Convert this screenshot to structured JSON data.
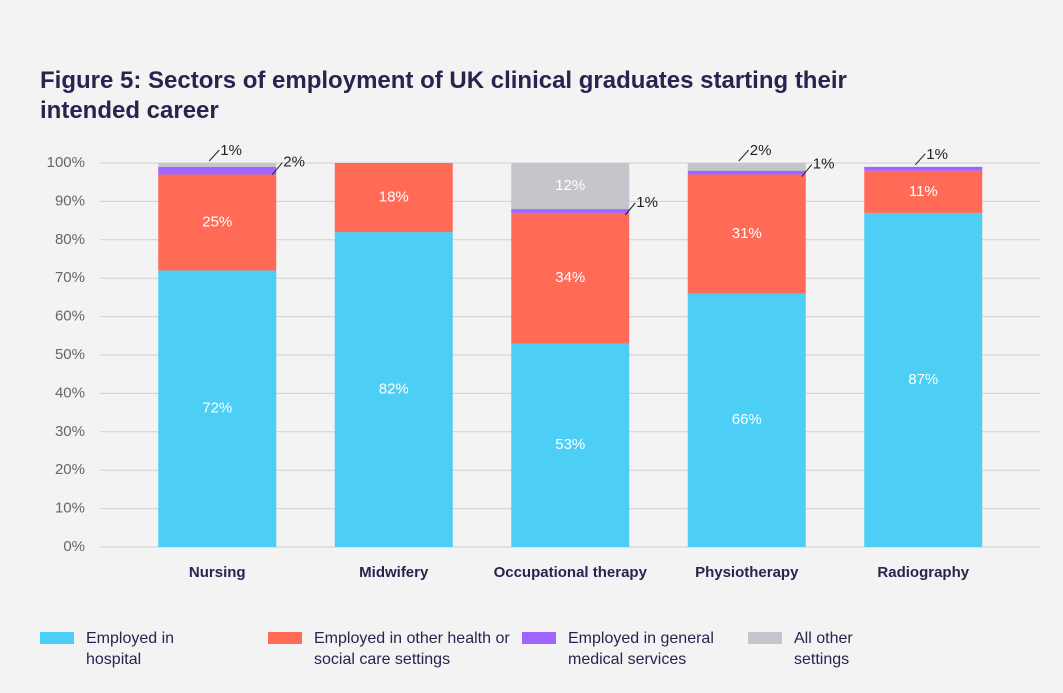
{
  "chart_data": {
    "type": "stacked_bar",
    "title": "Figure 5: Sectors of employment of UK clinical graduates starting their intended career",
    "categories": [
      "Nursing",
      "Midwifery",
      "Occupational therapy",
      "Physiotherapy",
      "Radiography"
    ],
    "series": [
      {
        "name": "Employed in hospital",
        "color": "#4dcff5",
        "values": [
          72,
          82,
          53,
          66,
          87
        ],
        "value_labels": [
          "72%",
          "82%",
          "53%",
          "66%",
          "87%"
        ]
      },
      {
        "name": "Employed in other health or social care settings",
        "color": "#ff6b57",
        "values": [
          25,
          18,
          34,
          31,
          11
        ],
        "value_labels": [
          "25%",
          "18%",
          "34%",
          "31%",
          "11%"
        ]
      },
      {
        "name": "Employed in general medical services",
        "color": "#a064ff",
        "values": [
          2,
          null,
          1,
          1,
          1
        ],
        "value_labels": [
          "2%",
          null,
          "1%",
          "1%",
          "1%"
        ]
      },
      {
        "name": "All other settings",
        "color": "#c4c6cc",
        "values": [
          1,
          null,
          12,
          2,
          null
        ],
        "value_labels": [
          "1%",
          null,
          "12%",
          "2%",
          null
        ]
      }
    ],
    "ylim": [
      0,
      100
    ],
    "yticks": [
      {
        "value": 0,
        "label": "0%"
      },
      {
        "value": 10,
        "label": "10%"
      },
      {
        "value": 20,
        "label": "20%"
      },
      {
        "value": 30,
        "label": "30%"
      },
      {
        "value": 40,
        "label": "40%"
      },
      {
        "value": 50,
        "label": "50%"
      },
      {
        "value": 60,
        "label": "60%"
      },
      {
        "value": 70,
        "label": "70%"
      },
      {
        "value": 80,
        "label": "80%"
      },
      {
        "value": 90,
        "label": "90%"
      },
      {
        "value": 100,
        "label": "100%"
      }
    ],
    "grid": true,
    "legend": "bottom"
  }
}
